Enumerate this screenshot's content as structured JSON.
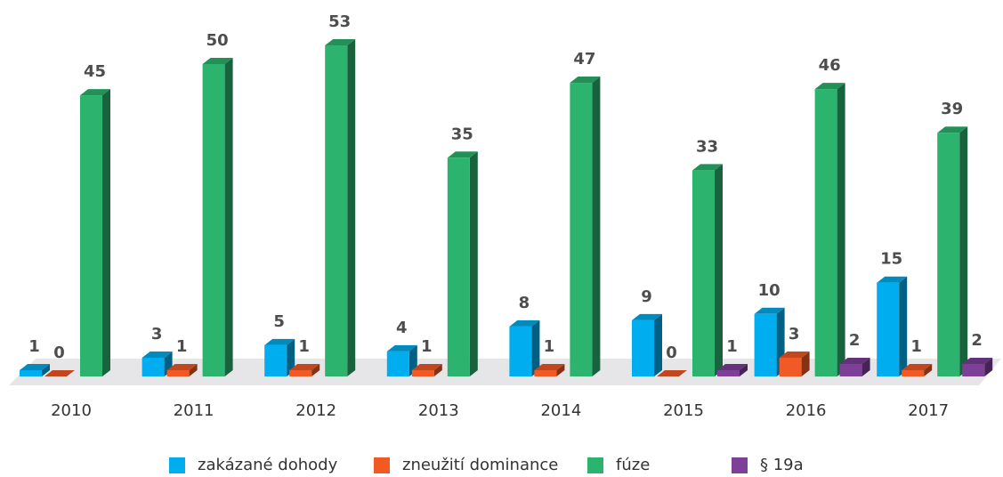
{
  "chart_data": {
    "type": "bar3d",
    "categories": [
      "2010",
      "2011",
      "2012",
      "2013",
      "2014",
      "2015",
      "2016",
      "2017"
    ],
    "series": [
      {
        "name": "zakázané dohody",
        "color": "#00aeef",
        "values": [
          1,
          3,
          5,
          4,
          8,
          9,
          10,
          15
        ]
      },
      {
        "name": "zneužití dominance",
        "color": "#f15a24",
        "values": [
          0,
          1,
          1,
          1,
          1,
          0,
          3,
          1
        ]
      },
      {
        "name": "fúze",
        "color": "#2cb46e",
        "values": [
          45,
          50,
          53,
          35,
          47,
          33,
          46,
          39
        ]
      },
      {
        "name": "§ 19a",
        "color": "#7d3f98",
        "values": [
          null,
          null,
          null,
          null,
          null,
          1,
          2,
          2
        ]
      }
    ]
  }
}
